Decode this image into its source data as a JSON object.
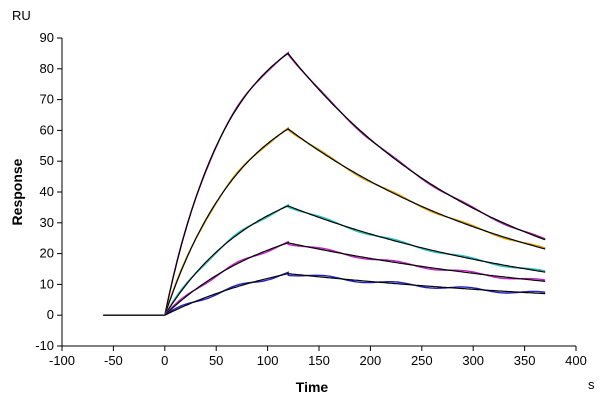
{
  "chart_data": {
    "type": "line",
    "title": "",
    "xlabel": "Time",
    "ylabel": "Response",
    "x_unit": "s",
    "y_unit": "RU",
    "xlim": [
      -100,
      400
    ],
    "ylim": [
      -10,
      90
    ],
    "x_ticks": [
      -100,
      -50,
      0,
      50,
      100,
      150,
      200,
      250,
      300,
      350,
      400
    ],
    "y_ticks": [
      -10,
      0,
      10,
      20,
      30,
      40,
      50,
      60,
      70,
      80,
      90
    ],
    "grid": false,
    "legend": "none",
    "baseline": {
      "x": [
        -60,
        0
      ],
      "y": 0
    },
    "association_end": 120,
    "dissociation_end": 370,
    "series": [
      {
        "color": "#a020a0",
        "fit_color": "#000000",
        "peak": 85.0,
        "end": 24.5,
        "k_on": 0.016
      },
      {
        "color": "#e0a000",
        "fit_color": "#000000",
        "peak": 60.5,
        "end": 21.5,
        "k_on": 0.013
      },
      {
        "color": "#20c0c0",
        "fit_color": "#000000",
        "peak": 35.5,
        "end": 14.0,
        "k_on": 0.011
      },
      {
        "color": "#c020c0",
        "fit_color": "#000000",
        "peak": 23.5,
        "end": 11.0,
        "k_on": 0.009
      },
      {
        "color": "#2020c0",
        "fit_color": "#000000",
        "peak": 13.5,
        "end": 7.0,
        "k_on": 0.007
      }
    ]
  }
}
